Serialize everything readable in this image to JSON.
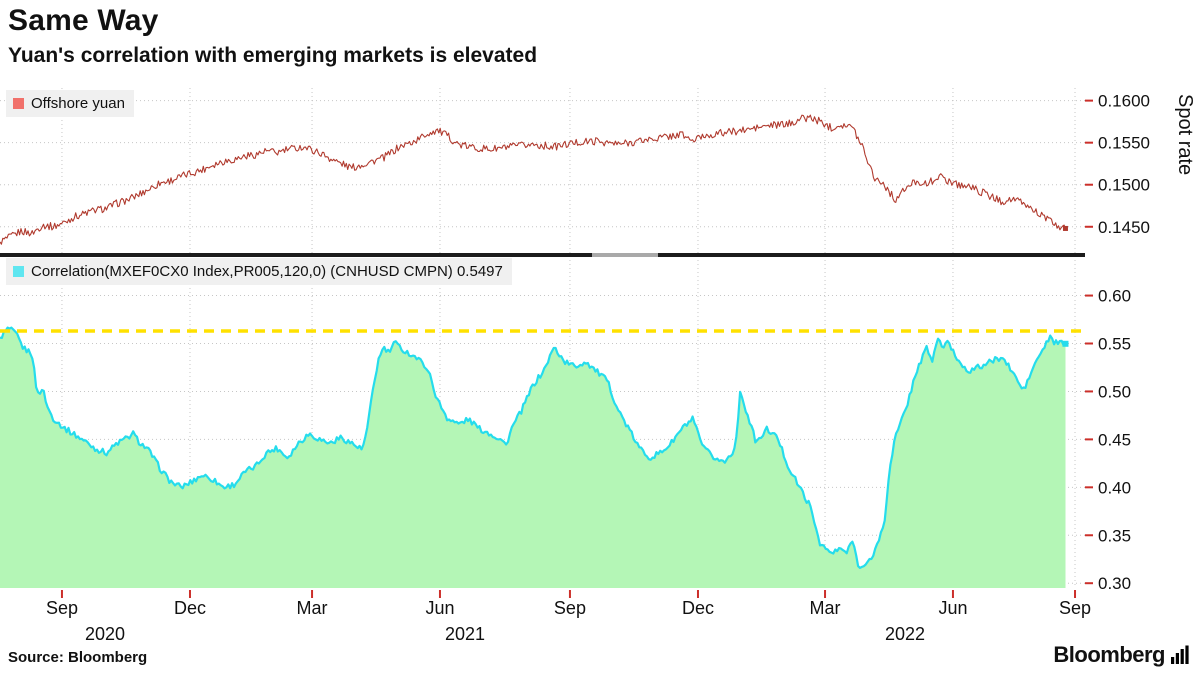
{
  "header": {
    "title": "Same Way",
    "subtitle": "Yuan's correlation with emerging markets is elevated"
  },
  "top_panel": {
    "legend": "Offshore yuan",
    "axis_label": "Spot rate"
  },
  "bottom_panel": {
    "legend": "Correlation(MXEF0CX0 Index,PR005,120,0) (CNHUSD CMPN) 0.5497"
  },
  "footer": {
    "source": "Source: Bloomberg",
    "logo_text": "Bloomberg"
  },
  "colors": {
    "spot_line": "#b03a2e",
    "spot_swatch": "#f1716b",
    "corr_line": "#25dcec",
    "corr_swatch": "#5fe6f0",
    "corr_fill": "#b4f6b6",
    "threshold": "#ffe100",
    "axis_tick": "#cc2f2a",
    "grid": "#c6c6c6",
    "text": "#111111"
  },
  "chart_data": {
    "type": "line",
    "panels": [
      {
        "name": "spot",
        "type": "line",
        "series_name": "Offshore yuan",
        "ylabel": "Spot rate",
        "ylim": [
          0.142,
          0.1615
        ],
        "yticks": [
          0.145,
          0.15,
          0.155,
          0.16
        ],
        "ytick_labels": [
          "0.1450",
          "0.1500",
          "0.1550",
          "0.1600"
        ],
        "noise_amp": 0.00045,
        "points": [
          [
            0.0,
            0.1432
          ],
          [
            0.01,
            0.1438
          ],
          [
            0.02,
            0.1445
          ],
          [
            0.03,
            0.1442
          ],
          [
            0.04,
            0.1452
          ],
          [
            0.05,
            0.145
          ],
          [
            0.06,
            0.1455
          ],
          [
            0.07,
            0.1462
          ],
          [
            0.08,
            0.1466
          ],
          [
            0.09,
            0.147
          ],
          [
            0.1,
            0.1472
          ],
          [
            0.11,
            0.1478
          ],
          [
            0.12,
            0.1482
          ],
          [
            0.13,
            0.1488
          ],
          [
            0.14,
            0.1495
          ],
          [
            0.15,
            0.1502
          ],
          [
            0.16,
            0.1505
          ],
          [
            0.175,
            0.1512
          ],
          [
            0.19,
            0.1518
          ],
          [
            0.2,
            0.1524
          ],
          [
            0.21,
            0.1528
          ],
          [
            0.22,
            0.153
          ],
          [
            0.23,
            0.1534
          ],
          [
            0.24,
            0.1536
          ],
          [
            0.25,
            0.154
          ],
          [
            0.26,
            0.1538
          ],
          [
            0.27,
            0.1542
          ],
          [
            0.285,
            0.1545
          ],
          [
            0.3,
            0.1538
          ],
          [
            0.315,
            0.1528
          ],
          [
            0.33,
            0.152
          ],
          [
            0.345,
            0.1526
          ],
          [
            0.36,
            0.1532
          ],
          [
            0.375,
            0.1545
          ],
          [
            0.39,
            0.1552
          ],
          [
            0.4,
            0.156
          ],
          [
            0.41,
            0.1565
          ],
          [
            0.42,
            0.1558
          ],
          [
            0.43,
            0.1548
          ],
          [
            0.44,
            0.1545
          ],
          [
            0.46,
            0.1542
          ],
          [
            0.48,
            0.1545
          ],
          [
            0.5,
            0.1548
          ],
          [
            0.52,
            0.1545
          ],
          [
            0.54,
            0.155
          ],
          [
            0.56,
            0.1552
          ],
          [
            0.58,
            0.1548
          ],
          [
            0.6,
            0.1552
          ],
          [
            0.62,
            0.1556
          ],
          [
            0.64,
            0.156
          ],
          [
            0.65,
            0.1552
          ],
          [
            0.66,
            0.1558
          ],
          [
            0.68,
            0.1562
          ],
          [
            0.7,
            0.1565
          ],
          [
            0.72,
            0.157
          ],
          [
            0.74,
            0.1572
          ],
          [
            0.75,
            0.1578
          ],
          [
            0.76,
            0.158
          ],
          [
            0.77,
            0.1575
          ],
          [
            0.78,
            0.1568
          ],
          [
            0.79,
            0.1572
          ],
          [
            0.8,
            0.1568
          ],
          [
            0.81,
            0.1545
          ],
          [
            0.82,
            0.151
          ],
          [
            0.83,
            0.15
          ],
          [
            0.84,
            0.1482
          ],
          [
            0.85,
            0.1495
          ],
          [
            0.86,
            0.1505
          ],
          [
            0.87,
            0.15
          ],
          [
            0.88,
            0.151
          ],
          [
            0.89,
            0.1505
          ],
          [
            0.9,
            0.15
          ],
          [
            0.91,
            0.1498
          ],
          [
            0.92,
            0.1492
          ],
          [
            0.93,
            0.1486
          ],
          [
            0.94,
            0.148
          ],
          [
            0.95,
            0.1483
          ],
          [
            0.96,
            0.1478
          ],
          [
            0.97,
            0.147
          ],
          [
            0.98,
            0.1462
          ],
          [
            0.99,
            0.1452
          ],
          [
            1.0,
            0.1448
          ]
        ]
      },
      {
        "name": "correlation",
        "type": "area",
        "series_name": "Correlation(MXEF0CX0 Index,PR005,120,0) (CNHUSD CMPN)",
        "last_value": 0.5497,
        "ylim": [
          0.295,
          0.635
        ],
        "yticks": [
          0.3,
          0.35,
          0.4,
          0.45,
          0.5,
          0.55,
          0.6
        ],
        "ytick_labels": [
          "0.30",
          "0.35",
          "0.40",
          "0.45",
          "0.50",
          "0.55",
          "0.60"
        ],
        "threshold": {
          "value": 0.563,
          "style": "dashed"
        },
        "noise_amp": 0.003,
        "points": [
          [
            0.0,
            0.556
          ],
          [
            0.008,
            0.566
          ],
          [
            0.015,
            0.56
          ],
          [
            0.022,
            0.545
          ],
          [
            0.03,
            0.54
          ],
          [
            0.035,
            0.497
          ],
          [
            0.04,
            0.503
          ],
          [
            0.045,
            0.482
          ],
          [
            0.05,
            0.472
          ],
          [
            0.06,
            0.462
          ],
          [
            0.07,
            0.455
          ],
          [
            0.08,
            0.448
          ],
          [
            0.09,
            0.44
          ],
          [
            0.1,
            0.436
          ],
          [
            0.11,
            0.446
          ],
          [
            0.12,
            0.452
          ],
          [
            0.125,
            0.456
          ],
          [
            0.13,
            0.448
          ],
          [
            0.14,
            0.438
          ],
          [
            0.15,
            0.42
          ],
          [
            0.16,
            0.406
          ],
          [
            0.17,
            0.4
          ],
          [
            0.18,
            0.406
          ],
          [
            0.19,
            0.413
          ],
          [
            0.2,
            0.408
          ],
          [
            0.21,
            0.4
          ],
          [
            0.22,
            0.403
          ],
          [
            0.23,
            0.416
          ],
          [
            0.24,
            0.422
          ],
          [
            0.25,
            0.436
          ],
          [
            0.26,
            0.441
          ],
          [
            0.27,
            0.431
          ],
          [
            0.28,
            0.446
          ],
          [
            0.29,
            0.456
          ],
          [
            0.3,
            0.45
          ],
          [
            0.31,
            0.446
          ],
          [
            0.32,
            0.452
          ],
          [
            0.33,
            0.446
          ],
          [
            0.34,
            0.439
          ],
          [
            0.345,
            0.462
          ],
          [
            0.35,
            0.502
          ],
          [
            0.355,
            0.532
          ],
          [
            0.36,
            0.546
          ],
          [
            0.365,
            0.54
          ],
          [
            0.37,
            0.551
          ],
          [
            0.38,
            0.542
          ],
          [
            0.39,
            0.536
          ],
          [
            0.4,
            0.526
          ],
          [
            0.405,
            0.512
          ],
          [
            0.41,
            0.492
          ],
          [
            0.42,
            0.472
          ],
          [
            0.43,
            0.466
          ],
          [
            0.44,
            0.471
          ],
          [
            0.45,
            0.461
          ],
          [
            0.46,
            0.456
          ],
          [
            0.47,
            0.45
          ],
          [
            0.475,
            0.444
          ],
          [
            0.48,
            0.461
          ],
          [
            0.49,
            0.481
          ],
          [
            0.5,
            0.506
          ],
          [
            0.51,
            0.521
          ],
          [
            0.52,
            0.546
          ],
          [
            0.53,
            0.531
          ],
          [
            0.54,
            0.526
          ],
          [
            0.55,
            0.531
          ],
          [
            0.56,
            0.521
          ],
          [
            0.57,
            0.511
          ],
          [
            0.58,
            0.481
          ],
          [
            0.59,
            0.461
          ],
          [
            0.6,
            0.441
          ],
          [
            0.61,
            0.431
          ],
          [
            0.62,
            0.436
          ],
          [
            0.63,
            0.446
          ],
          [
            0.64,
            0.461
          ],
          [
            0.65,
            0.471
          ],
          [
            0.66,
            0.441
          ],
          [
            0.67,
            0.431
          ],
          [
            0.68,
            0.426
          ],
          [
            0.69,
            0.441
          ],
          [
            0.695,
            0.501
          ],
          [
            0.7,
            0.481
          ],
          [
            0.71,
            0.446
          ],
          [
            0.72,
            0.461
          ],
          [
            0.73,
            0.451
          ],
          [
            0.74,
            0.421
          ],
          [
            0.75,
            0.401
          ],
          [
            0.76,
            0.381
          ],
          [
            0.77,
            0.341
          ],
          [
            0.78,
            0.331
          ],
          [
            0.79,
            0.336
          ],
          [
            0.795,
            0.331
          ],
          [
            0.8,
            0.346
          ],
          [
            0.805,
            0.321
          ],
          [
            0.81,
            0.316
          ],
          [
            0.815,
            0.321
          ],
          [
            0.82,
            0.331
          ],
          [
            0.83,
            0.361
          ],
          [
            0.835,
            0.421
          ],
          [
            0.84,
            0.451
          ],
          [
            0.85,
            0.481
          ],
          [
            0.855,
            0.501
          ],
          [
            0.86,
            0.521
          ],
          [
            0.87,
            0.546
          ],
          [
            0.875,
            0.531
          ],
          [
            0.88,
            0.556
          ],
          [
            0.885,
            0.546
          ],
          [
            0.89,
            0.551
          ],
          [
            0.9,
            0.531
          ],
          [
            0.91,
            0.521
          ],
          [
            0.92,
            0.526
          ],
          [
            0.93,
            0.531
          ],
          [
            0.94,
            0.536
          ],
          [
            0.95,
            0.521
          ],
          [
            0.96,
            0.501
          ],
          [
            0.965,
            0.511
          ],
          [
            0.97,
            0.526
          ],
          [
            0.98,
            0.546
          ],
          [
            0.985,
            0.556
          ],
          [
            0.99,
            0.551
          ],
          [
            1.0,
            0.5497
          ]
        ]
      }
    ],
    "x_axis": {
      "tick_labels": [
        "Sep",
        "Dec",
        "Mar",
        "Jun",
        "Sep",
        "Dec",
        "Mar",
        "Jun",
        "Sep"
      ],
      "tick_positions": [
        0.0571,
        0.1751,
        0.2876,
        0.4055,
        0.5253,
        0.6433,
        0.7604,
        0.8783,
        0.9908
      ],
      "year_labels": [
        {
          "label": "2020",
          "pos": 0.0968
        },
        {
          "label": "2021",
          "pos": 0.4286
        },
        {
          "label": "2022",
          "pos": 0.8341
        }
      ]
    }
  }
}
